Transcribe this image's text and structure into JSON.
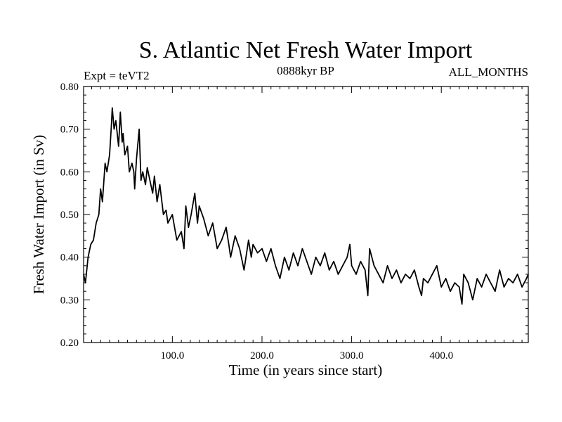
{
  "chart_data": {
    "type": "line",
    "title": "S. Atlantic Net Fresh Water Import",
    "subtitle_left": "Expt = teVT2",
    "subtitle_center": "0888kyr BP",
    "subtitle_right": "ALL_MONTHS",
    "xlabel": "Time (in years since start)",
    "ylabel": "Fresh Water Import (in Sv)",
    "xlim": [
      1,
      497
    ],
    "ylim": [
      0.2,
      0.8
    ],
    "xticks": [
      100,
      200,
      300,
      400
    ],
    "xtick_labels": [
      "100.0",
      "200.0",
      "300.0",
      "400.0"
    ],
    "yticks": [
      0.2,
      0.3,
      0.4,
      0.5,
      0.6,
      0.7,
      0.8
    ],
    "ytick_labels": [
      "0.20",
      "0.30",
      "0.40",
      "0.50",
      "0.60",
      "0.70",
      "0.80"
    ],
    "grid": false,
    "series": [
      {
        "name": "S. Atlantic Net Fresh Water Import",
        "color": "#000000",
        "x": [
          1,
          3,
          6,
          9,
          12,
          15,
          18,
          20,
          22,
          25,
          27,
          30,
          32,
          33,
          35,
          37,
          40,
          42,
          44,
          45,
          47,
          50,
          52,
          55,
          57,
          58,
          60,
          63,
          65,
          67,
          70,
          72,
          75,
          78,
          80,
          83,
          86,
          90,
          93,
          95,
          100,
          105,
          110,
          113,
          115,
          118,
          121,
          125,
          128,
          130,
          135,
          140,
          145,
          150,
          155,
          160,
          163,
          165,
          170,
          175,
          180,
          185,
          188,
          190,
          195,
          200,
          205,
          210,
          215,
          220,
          225,
          230,
          235,
          240,
          245,
          250,
          255,
          260,
          265,
          270,
          275,
          280,
          285,
          290,
          295,
          298,
          300,
          305,
          310,
          315,
          318,
          320,
          325,
          330,
          335,
          340,
          345,
          350,
          355,
          360,
          365,
          370,
          375,
          378,
          380,
          385,
          390,
          395,
          400,
          405,
          410,
          415,
          420,
          423,
          425,
          430,
          435,
          440,
          445,
          450,
          455,
          460,
          465,
          470,
          475,
          480,
          485,
          490,
          495,
          497
        ],
        "values": [
          0.36,
          0.34,
          0.4,
          0.43,
          0.44,
          0.48,
          0.5,
          0.56,
          0.53,
          0.62,
          0.6,
          0.64,
          0.71,
          0.75,
          0.7,
          0.72,
          0.66,
          0.74,
          0.67,
          0.69,
          0.64,
          0.66,
          0.6,
          0.62,
          0.6,
          0.56,
          0.63,
          0.7,
          0.58,
          0.6,
          0.57,
          0.61,
          0.58,
          0.55,
          0.59,
          0.53,
          0.57,
          0.5,
          0.51,
          0.48,
          0.5,
          0.44,
          0.46,
          0.42,
          0.52,
          0.47,
          0.5,
          0.55,
          0.48,
          0.52,
          0.49,
          0.45,
          0.48,
          0.42,
          0.44,
          0.47,
          0.43,
          0.4,
          0.45,
          0.42,
          0.37,
          0.44,
          0.4,
          0.43,
          0.41,
          0.42,
          0.39,
          0.42,
          0.38,
          0.35,
          0.4,
          0.37,
          0.41,
          0.38,
          0.42,
          0.39,
          0.36,
          0.4,
          0.38,
          0.41,
          0.37,
          0.39,
          0.36,
          0.38,
          0.4,
          0.43,
          0.38,
          0.36,
          0.39,
          0.37,
          0.31,
          0.42,
          0.38,
          0.36,
          0.34,
          0.38,
          0.35,
          0.37,
          0.34,
          0.36,
          0.35,
          0.37,
          0.33,
          0.31,
          0.35,
          0.34,
          0.36,
          0.38,
          0.33,
          0.35,
          0.32,
          0.34,
          0.33,
          0.29,
          0.36,
          0.34,
          0.3,
          0.35,
          0.33,
          0.36,
          0.34,
          0.32,
          0.37,
          0.33,
          0.35,
          0.34,
          0.36,
          0.33,
          0.35,
          0.36
        ]
      }
    ]
  }
}
